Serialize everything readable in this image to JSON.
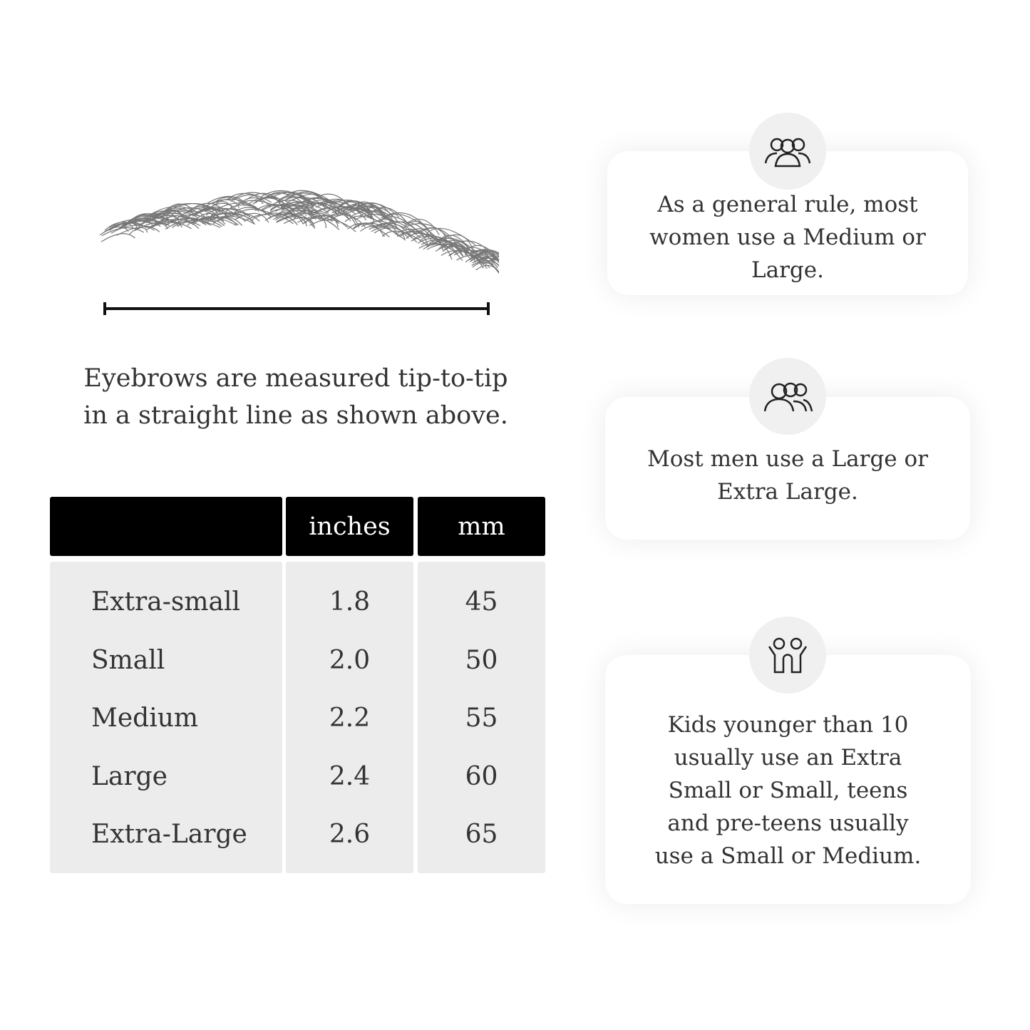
{
  "caption": "Eyebrows are measured tip-to-tip in a straight line as shown above.",
  "table": {
    "headers": [
      "",
      "inches",
      "mm"
    ],
    "rows": [
      [
        "Extra-small",
        "1.8",
        "45"
      ],
      [
        "Small",
        "2.0",
        "50"
      ],
      [
        "Medium",
        "2.2",
        "55"
      ],
      [
        "Large",
        "2.4",
        "60"
      ],
      [
        "Extra-Large",
        "2.6",
        "65"
      ]
    ]
  },
  "cards": [
    {
      "icon": "women-group-icon",
      "text": "As a general rule, most women use a Medium or Large."
    },
    {
      "icon": "men-group-icon",
      "text": "Most men use a Large or Extra Large."
    },
    {
      "icon": "kids-icon",
      "text": "Kids younger than 10 usually use an Extra Small or Small, teens and pre-teens usually use a Small or Medium."
    }
  ]
}
